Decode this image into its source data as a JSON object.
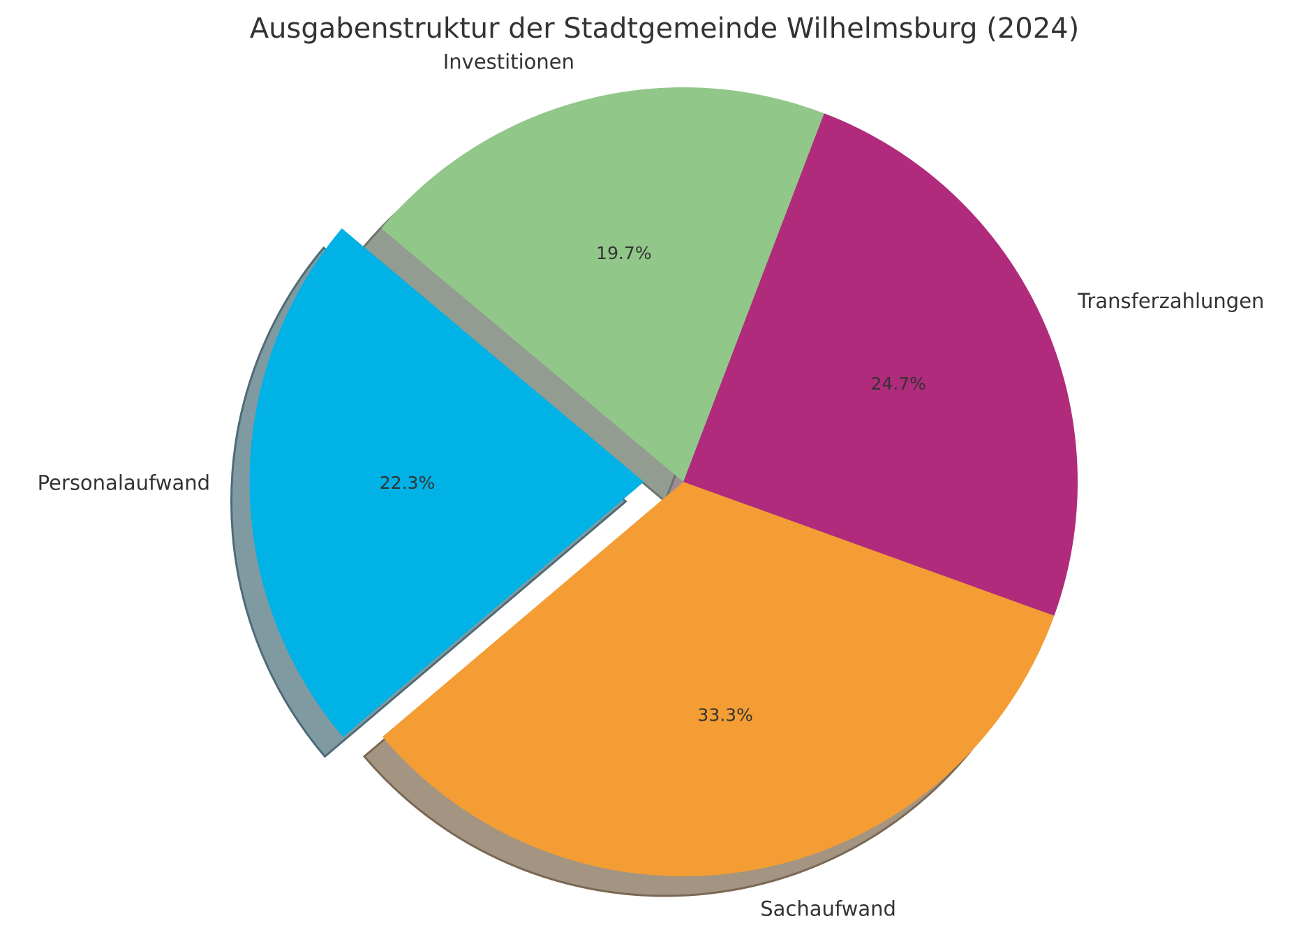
{
  "chart_data": {
    "type": "pie",
    "title": "Ausgabenstruktur der Stadtgemeinde Wilhelmsburg (2024)",
    "categories": [
      "Personalaufwand",
      "Sachaufwand",
      "Transferzahlungen",
      "Investitionen"
    ],
    "values": [
      22.3,
      33.3,
      24.7,
      19.7
    ],
    "labels_pct": [
      "22.3%",
      "33.3%",
      "24.7%",
      "19.7%"
    ],
    "colors": [
      "#00b2e5",
      "#f39d34",
      "#b02b7b",
      "#92c78a"
    ],
    "shadow_colors": [
      "#809aa1",
      "#a39582",
      "#a08a9a",
      "#939c90"
    ],
    "shadow_edge_colors": [
      "#4f6b77",
      "#7a6855",
      "#6a5566",
      "#6b7468"
    ],
    "explode": [
      0.1,
      0,
      0,
      0
    ],
    "start_angle": 140,
    "shadow": true,
    "legend": false
  }
}
